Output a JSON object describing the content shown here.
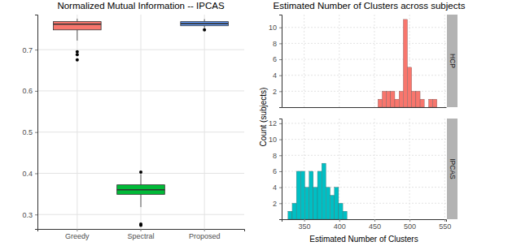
{
  "chart_data": [
    {
      "type": "box",
      "title": "Normalized Mutual Information -- IPCAS",
      "categories": [
        "Greedy",
        "Spectral",
        "Proposed"
      ],
      "colors": [
        "#f8766d",
        "#00ba38",
        "#619cff"
      ],
      "boxes": [
        {
          "whisker_low": 0.722,
          "q1": 0.748,
          "median": 0.762,
          "q3": 0.768,
          "whisker_high": 0.775,
          "outliers": [
            0.695,
            0.688,
            0.675
          ]
        },
        {
          "whisker_low": 0.318,
          "q1": 0.349,
          "median": 0.36,
          "q3": 0.372,
          "whisker_high": 0.398,
          "outliers": [
            0.403,
            0.277,
            0.274
          ]
        },
        {
          "whisker_low": 0.752,
          "q1": 0.758,
          "median": 0.763,
          "q3": 0.768,
          "whisker_high": 0.774,
          "outliers": [
            0.748
          ]
        }
      ],
      "ylim": [
        0.265,
        0.785
      ],
      "yticks": [
        0.3,
        0.4,
        0.5,
        0.6,
        0.7
      ],
      "grid": true
    },
    {
      "type": "histogram",
      "title": "Estimated Number of Clusters across subjects",
      "xlabel": "Estimated Number of Clusters",
      "ylabel": "Count (subjects)",
      "xlim": [
        318,
        552
      ],
      "xticks": [
        350,
        400,
        450,
        500,
        550
      ],
      "grid": true,
      "series": [
        {
          "name": "HCP",
          "color": "#f8766d",
          "bins": [
            455,
            461,
            467,
            473,
            479,
            485,
            491,
            497,
            503,
            509,
            515,
            521,
            527,
            533,
            539
          ],
          "values": [
            1,
            2,
            2,
            2,
            1,
            2,
            11,
            5,
            2,
            2,
            1,
            0,
            1,
            1
          ],
          "ylim": [
            0,
            11.6
          ],
          "yticks": [
            2,
            4,
            6,
            8,
            10
          ]
        },
        {
          "name": "IPCAS",
          "color": "#00bfc4",
          "bins": [
            327,
            333,
            339,
            345,
            351,
            357,
            363,
            369,
            375,
            381,
            387,
            393,
            399,
            405,
            411
          ],
          "values": [
            1,
            2,
            6,
            6,
            4,
            6,
            4,
            6,
            7,
            4,
            3,
            4,
            2,
            1
          ],
          "ylim": [
            0,
            12.6
          ],
          "yticks": [
            2,
            4,
            6,
            8,
            10,
            12
          ]
        }
      ]
    }
  ]
}
